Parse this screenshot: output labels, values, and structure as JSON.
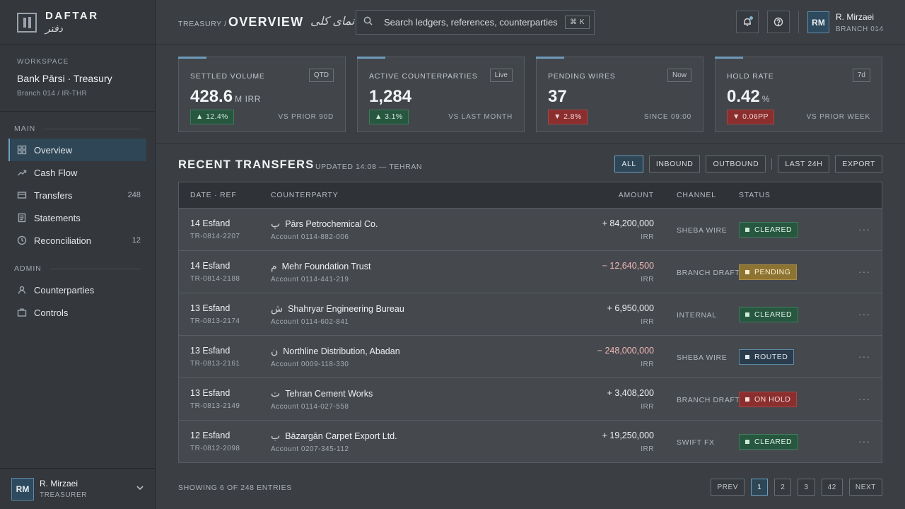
{
  "brand": {
    "name": "DAFTAR",
    "sub": "دفتر"
  },
  "workspace": {
    "label": "WORKSPACE",
    "name": "Bank Pārsi · Treasury",
    "meta": "Branch 014 / IR-THR"
  },
  "nav": {
    "main_label": "MAIN",
    "admin_label": "ADMIN",
    "main_items": [
      {
        "label": "Overview",
        "count": "",
        "icon": "grid-icon"
      },
      {
        "label": "Cash Flow",
        "count": "",
        "icon": "trend-icon"
      },
      {
        "label": "Transfers",
        "count": "248",
        "icon": "card-icon"
      },
      {
        "label": "Statements",
        "count": "",
        "icon": "document-icon"
      },
      {
        "label": "Reconciliation",
        "count": "12",
        "icon": "clock-icon"
      }
    ],
    "admin_items": [
      {
        "label": "Counterparties",
        "count": "",
        "icon": "user-icon"
      },
      {
        "label": "Controls",
        "count": "",
        "icon": "briefcase-icon"
      }
    ]
  },
  "sidebar_user": {
    "initials": "RM",
    "name": "R. Mirzaei",
    "role": "TREASURER"
  },
  "header": {
    "crumb": "TREASURY /",
    "title": "OVERVIEW",
    "title_fa": "نمای کلی",
    "search_placeholder": "Search ledgers, references, counterparties",
    "search_shortcut": "⌘ K",
    "user": {
      "initials": "RM",
      "name": "R. Mirzaei",
      "branch": "BRANCH 014"
    }
  },
  "kpis": [
    {
      "label": "SETTLED VOLUME",
      "tag": "QTD",
      "value": "428.6",
      "unit": "M IRR",
      "delta": "▲ 12.4%",
      "direction": "up",
      "compare": "VS PRIOR 90D"
    },
    {
      "label": "ACTIVE COUNTERPARTIES",
      "tag": "Live",
      "value": "1,284",
      "unit": "",
      "delta": "▲ 3.1%",
      "direction": "up",
      "compare": "VS LAST MONTH"
    },
    {
      "label": "PENDING WIRES",
      "tag": "Now",
      "value": "37",
      "unit": "",
      "delta": "▼ 2.8%",
      "direction": "down",
      "compare": "SINCE 09:00"
    },
    {
      "label": "HOLD RATE",
      "tag": "7d",
      "value": "0.42",
      "unit": "%",
      "delta": "▼ 0.06PP",
      "direction": "down",
      "compare": "VS PRIOR WEEK"
    }
  ],
  "transfers": {
    "title": "RECENT TRANSFERS",
    "updated": "UPDATED 14:08 — TEHRAN",
    "filters": [
      "ALL",
      "INBOUND",
      "OUTBOUND"
    ],
    "range": "LAST 24H",
    "export": "EXPORT",
    "columns": {
      "date": "DATE · REF",
      "counterparty": "COUNTERPARTY",
      "amount": "AMOUNT",
      "channel": "CHANNEL",
      "status": "STATUS"
    },
    "rows": [
      {
        "date": "14 Esfand",
        "ref": "TR-0814-2207",
        "glyph": "پ",
        "name": "Pārs Petrochemical Co.",
        "account": "Account 0114-882-006",
        "amount": "+ 84,200,000",
        "currency": "IRR",
        "neg": false,
        "channel": "SHEBA WIRE",
        "status": "CLEARED",
        "status_type": "cleared"
      },
      {
        "date": "14 Esfand",
        "ref": "TR-0814-2188",
        "glyph": "م",
        "name": "Mehr Foundation Trust",
        "account": "Account 0114-441-219",
        "amount": "− 12,640,500",
        "currency": "IRR",
        "neg": true,
        "channel": "BRANCH DRAFT",
        "status": "PENDING",
        "status_type": "pending"
      },
      {
        "date": "13 Esfand",
        "ref": "TR-0813-2174",
        "glyph": "ش",
        "name": "Shahryar Engineering Bureau",
        "account": "Account 0114-602-841",
        "amount": "+ 6,950,000",
        "currency": "IRR",
        "neg": false,
        "channel": "INTERNAL",
        "status": "CLEARED",
        "status_type": "cleared"
      },
      {
        "date": "13 Esfand",
        "ref": "TR-0813-2161",
        "glyph": "ن",
        "name": "Northline Distribution, Abadan",
        "account": "Account 0009-118-330",
        "amount": "− 248,000,000",
        "currency": "IRR",
        "neg": true,
        "channel": "SHEBA WIRE",
        "status": "ROUTED",
        "status_type": "routed"
      },
      {
        "date": "13 Esfand",
        "ref": "TR-0813-2149",
        "glyph": "ت",
        "name": "Tehran Cement Works",
        "account": "Account 0114-027-558",
        "amount": "+ 3,408,200",
        "currency": "IRR",
        "neg": false,
        "channel": "BRANCH DRAFT",
        "status": "ON HOLD",
        "status_type": "hold"
      },
      {
        "date": "12 Esfand",
        "ref": "TR-0812-2098",
        "glyph": "ب",
        "name": "Bāzargān Carpet Export Ltd.",
        "account": "Account 0207-345-112",
        "amount": "+ 19,250,000",
        "currency": "IRR",
        "neg": false,
        "channel": "SWIFT FX",
        "status": "CLEARED",
        "status_type": "cleared"
      }
    ],
    "more_label": "···",
    "showing": "SHOWING 6 OF 248 ENTRIES",
    "pager": {
      "prev": "PREV",
      "pages": [
        "1",
        "2",
        "3",
        "42"
      ],
      "current": "1",
      "next": "NEXT"
    }
  }
}
